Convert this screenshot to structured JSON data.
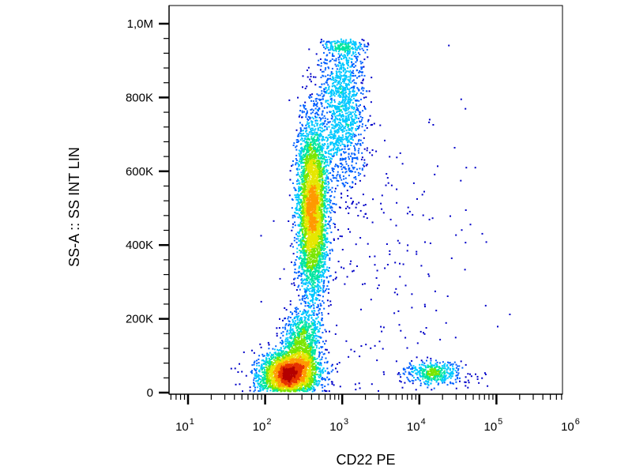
{
  "chart_data": {
    "type": "scatter",
    "subtype": "flow-cytometry density dot plot",
    "xlabel": "CD22 PE",
    "ylabel": "SS-A :: SS INT LIN",
    "x_scale": "log",
    "xlim": [
      5,
      1000000
    ],
    "y_scale": "linear",
    "ylim": [
      0,
      1000000
    ],
    "x_ticks": [
      {
        "value": 10,
        "base": "10",
        "exp": "1"
      },
      {
        "value": 100,
        "base": "10",
        "exp": "2"
      },
      {
        "value": 1000,
        "base": "10",
        "exp": "3"
      },
      {
        "value": 10000,
        "base": "10",
        "exp": "4"
      },
      {
        "value": 100000,
        "base": "10",
        "exp": "5"
      },
      {
        "value": 1000000,
        "base": "10",
        "exp": "6"
      }
    ],
    "y_ticks": [
      {
        "value": 0,
        "label": "0"
      },
      {
        "value": 200000,
        "label": "200K"
      },
      {
        "value": 400000,
        "label": "400K"
      },
      {
        "value": 600000,
        "label": "600K"
      },
      {
        "value": 800000,
        "label": "800K"
      },
      {
        "value": 1000000,
        "label": "1,0M"
      }
    ],
    "grid": false,
    "legend": "none",
    "colormap": [
      "#0000c8",
      "#0060ff",
      "#00c8ff",
      "#00e6a0",
      "#7ae600",
      "#e6e600",
      "#ff9900",
      "#e63200",
      "#b40000"
    ],
    "populations": [
      {
        "name": "CD22-negative low-SS cluster",
        "x_center": 200,
        "x_spread_decades": 0.2,
        "y_center": 55000,
        "y_spread": 30000,
        "count": 2600
      },
      {
        "name": "CD22-negative low-SS tail",
        "x_center": 300,
        "x_spread_decades": 0.12,
        "y_center": 140000,
        "y_spread": 45000,
        "count": 900
      },
      {
        "name": "CD22-negative high-SS stream",
        "x_center": 400,
        "x_spread_decades": 0.1,
        "y_center": 500000,
        "y_spread": 120000,
        "count": 3800
      },
      {
        "name": "upper high-SS stream",
        "x_center": 1000,
        "x_spread_decades": 0.15,
        "y_center": 780000,
        "y_spread": 120000,
        "count": 1400
      },
      {
        "name": "CD22-positive low-SS cluster",
        "x_center": 15000,
        "x_spread_decades": 0.2,
        "y_center": 55000,
        "y_spread": 15000,
        "count": 450
      },
      {
        "name": "sparse events",
        "x_center": 3000,
        "x_spread_decades": 0.7,
        "y_center": 350000,
        "y_spread": 250000,
        "count": 220
      }
    ]
  }
}
